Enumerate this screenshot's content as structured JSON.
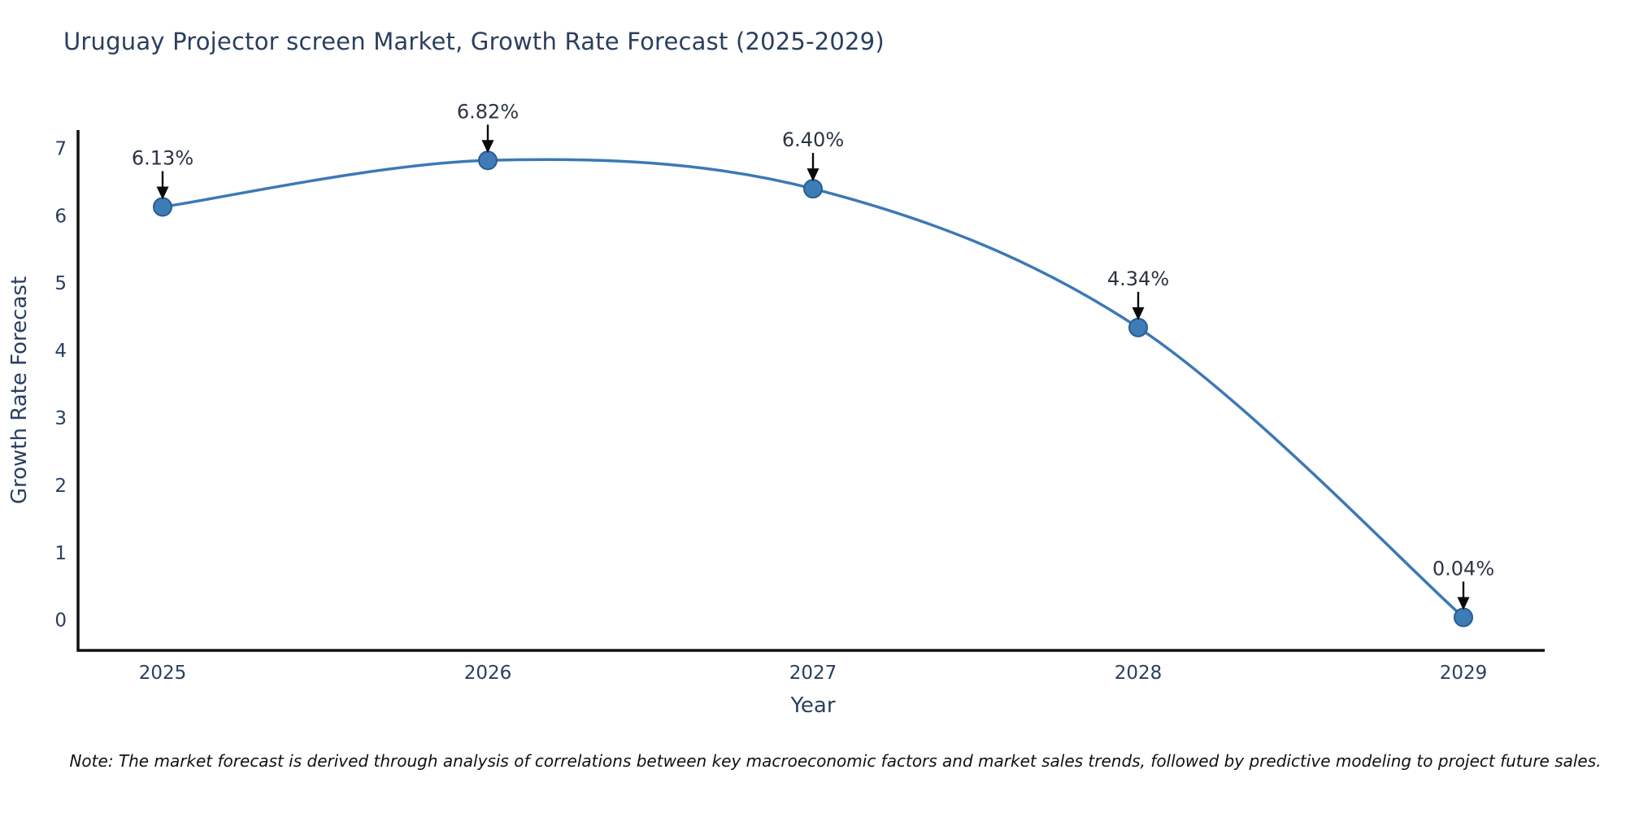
{
  "page": {
    "title": "Uruguay Projector screen Market, Growth Rate Forecast (2025-2029)",
    "footnote": "Note: The market forecast is derived through analysis of correlations between key macroeconomic factors and market sales trends, followed by predictive modeling to project future sales."
  },
  "chart_data": {
    "type": "line",
    "title": "Uruguay Projector screen Market, Growth Rate Forecast (2025-2029)",
    "x": [
      2025,
      2026,
      2027,
      2028,
      2029
    ],
    "series": [
      {
        "name": "Growth Rate Forecast",
        "values": [
          6.13,
          6.82,
          6.4,
          4.34,
          0.04
        ]
      }
    ],
    "point_labels": [
      "6.13%",
      "6.82%",
      "6.40%",
      "4.34%",
      "0.04%"
    ],
    "xlabel": "Year",
    "ylabel": "Growth Rate Forecast",
    "xtick_labels": [
      "2025",
      "2026",
      "2027",
      "2028",
      "2029"
    ],
    "yticks": [
      0,
      1,
      2,
      3,
      4,
      5,
      6,
      7
    ],
    "xlim": [
      2024.74,
      2029.25
    ],
    "ylim": [
      -0.45,
      7.27
    ],
    "grid": false,
    "legend": false,
    "line_shape": "spline",
    "annotation_arrows": true,
    "colors": {
      "line": "#3c79b5",
      "marker_fill": "#3e7cb8",
      "marker_edge": "#2a5d8f",
      "axis_text": "#2a3f5f",
      "annotation_text": "#2c3442",
      "axis_spine": "#111111",
      "arrow": "#0a0a0a",
      "background": "#ffffff"
    }
  }
}
